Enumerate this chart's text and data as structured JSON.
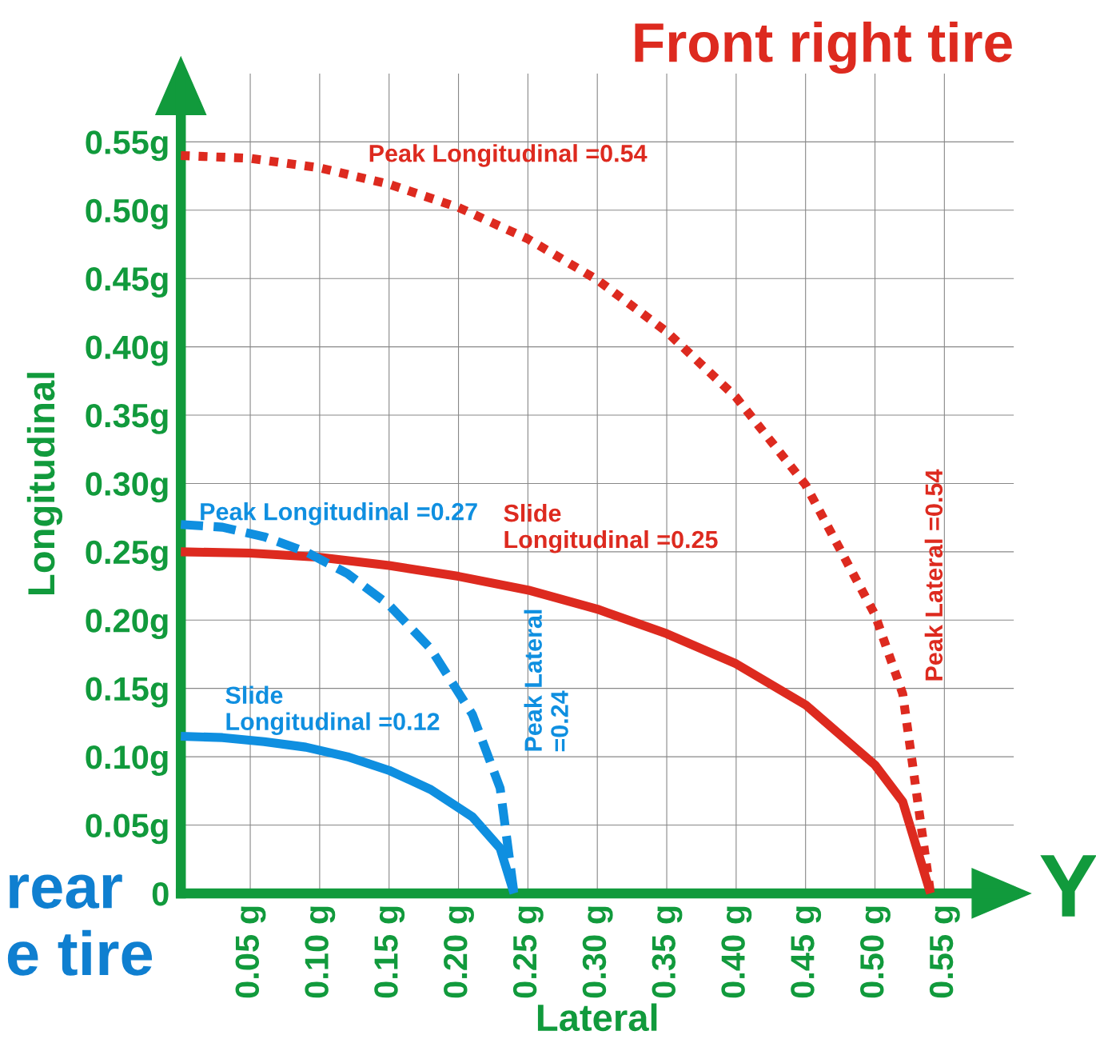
{
  "chart_data": {
    "type": "line",
    "title": "Front right tire",
    "xlabel": "Lateral",
    "ylabel": "Longitudinal",
    "xlim": [
      0,
      0.6
    ],
    "ylim": [
      0,
      0.6
    ],
    "xticks": [
      {
        "value": 0.05,
        "label": "0.05 g"
      },
      {
        "value": 0.1,
        "label": "0.10 g"
      },
      {
        "value": 0.15,
        "label": "0.15 g"
      },
      {
        "value": 0.2,
        "label": "0.20 g"
      },
      {
        "value": 0.25,
        "label": "0.25 g"
      },
      {
        "value": 0.3,
        "label": "0.30 g"
      },
      {
        "value": 0.35,
        "label": "0.35 g"
      },
      {
        "value": 0.4,
        "label": "0.40 g"
      },
      {
        "value": 0.45,
        "label": "0.45 g"
      },
      {
        "value": 0.5,
        "label": "0.50 g"
      },
      {
        "value": 0.55,
        "label": "0.55 g"
      }
    ],
    "yticks": [
      0,
      {
        "value": 0.05,
        "label": "0.05g"
      },
      {
        "value": 0.1,
        "label": "0.10g"
      },
      {
        "value": 0.15,
        "label": "0.15g"
      },
      {
        "value": 0.2,
        "label": "0.20g"
      },
      {
        "value": 0.25,
        "label": "0.25g"
      },
      {
        "value": 0.3,
        "label": "0.30g"
      },
      {
        "value": 0.35,
        "label": "0.35g"
      },
      {
        "value": 0.4,
        "label": "0.40g"
      },
      {
        "value": 0.45,
        "label": "0.45g"
      },
      {
        "value": 0.5,
        "label": "0.50g"
      },
      {
        "value": 0.55,
        "label": "0.55g"
      }
    ],
    "grid": true,
    "marker": "none",
    "series": [
      {
        "color": "#dd2a1f",
        "line_style": "dotted",
        "x": [
          0,
          0.05,
          0.1,
          0.15,
          0.2,
          0.25,
          0.3,
          0.35,
          0.4,
          0.45,
          0.5,
          0.52,
          0.54
        ],
        "values": [
          0.54,
          0.538,
          0.531,
          0.519,
          0.502,
          0.479,
          0.449,
          0.411,
          0.363,
          0.299,
          0.204,
          0.146,
          0
        ]
      },
      {
        "color": "#dd2a1f",
        "line_style": "solid",
        "x": [
          0,
          0.05,
          0.1,
          0.15,
          0.2,
          0.25,
          0.3,
          0.35,
          0.4,
          0.45,
          0.5,
          0.52,
          0.54
        ],
        "values": [
          0.25,
          0.249,
          0.246,
          0.24,
          0.232,
          0.222,
          0.208,
          0.19,
          0.168,
          0.138,
          0.094,
          0.067,
          0
        ]
      },
      {
        "color": "#0f8fe0",
        "line_style": "dashed",
        "x": [
          0,
          0.03,
          0.06,
          0.09,
          0.12,
          0.15,
          0.18,
          0.21,
          0.23,
          0.24
        ],
        "values": [
          0.27,
          0.268,
          0.261,
          0.25,
          0.234,
          0.211,
          0.179,
          0.131,
          0.077,
          0
        ]
      },
      {
        "color": "#0f8fe0",
        "line_style": "solid",
        "x": [
          0,
          0.03,
          0.06,
          0.09,
          0.12,
          0.15,
          0.18,
          0.21,
          0.23,
          0.24
        ],
        "values": [
          0.115,
          0.114,
          0.111,
          0.107,
          0.1,
          0.09,
          0.076,
          0.056,
          0.033,
          0
        ]
      }
    ],
    "annotations": [
      "Peak Longitudinal =0.54",
      "Peak Longitudinal =0.27",
      "Slide\nLongitudinal =0.25",
      "Slide\nLongitudinal =0.12",
      "Peak Lateral\n=0.24",
      "Peak Lateral =0.54",
      "rear\ne tire",
      "Y"
    ]
  }
}
